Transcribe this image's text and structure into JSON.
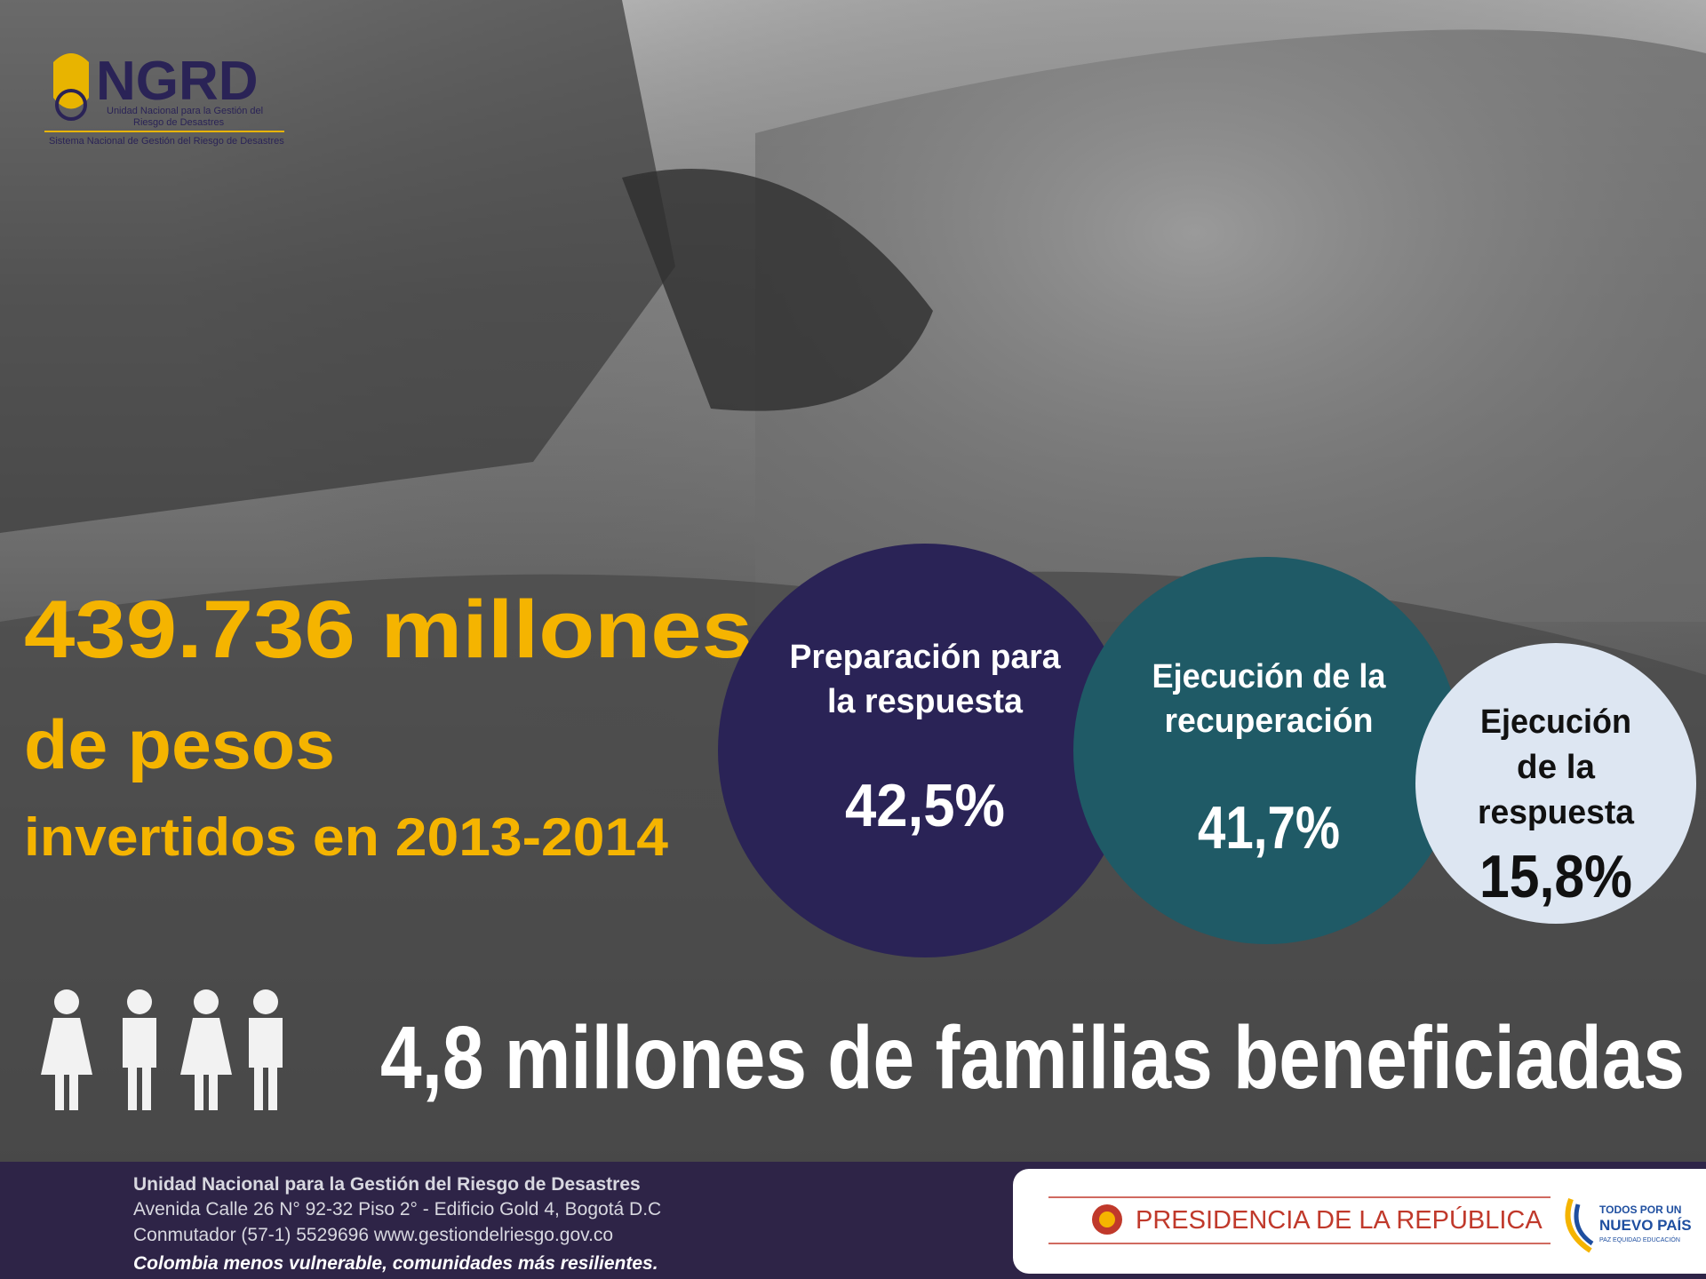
{
  "header": {
    "logo": "NGRD",
    "logo_subtitle_lines": [
      "Unidad Nacional para la Gestión del",
      "Riesgo de Desastres"
    ],
    "logo_system": "Sistema Nacional de Gestión del Riesgo de Desastres"
  },
  "headline": {
    "amount": "439.736 millones",
    "unit": "de pesos",
    "period": "invertidos en 2013-2014"
  },
  "segments": [
    {
      "label_lines": [
        "Preparación para",
        "la respuesta"
      ],
      "value": "42,5%"
    },
    {
      "label_lines": [
        "Ejecución de la",
        "recuperación"
      ],
      "value": "41,7%"
    },
    {
      "label_lines": [
        "Ejecución",
        "de la",
        "respuesta"
      ],
      "value": "15,8%"
    }
  ],
  "families": "4,8 millones de familias beneficiadas",
  "footer": {
    "lines": [
      "Unidad Nacional para la Gestión del Riesgo de Desastres",
      "Avenida Calle 26 N° 92-32 Piso 2° - Edificio Gold 4, Bogotá D.C",
      "Conmutador (57-1) 5529696  www.gestiondelriesgo.gov.co"
    ],
    "slogan": "Colombia menos vulnerable, comunidades más resilientes.",
    "presidency": "PRESIDENCIA DE LA REPÚBLICA",
    "campaign_lines": [
      "TODOS POR UN",
      "NUEVO PAÍS"
    ],
    "campaign_tag": "PAZ  EQUIDAD  EDUCACIÓN"
  }
}
